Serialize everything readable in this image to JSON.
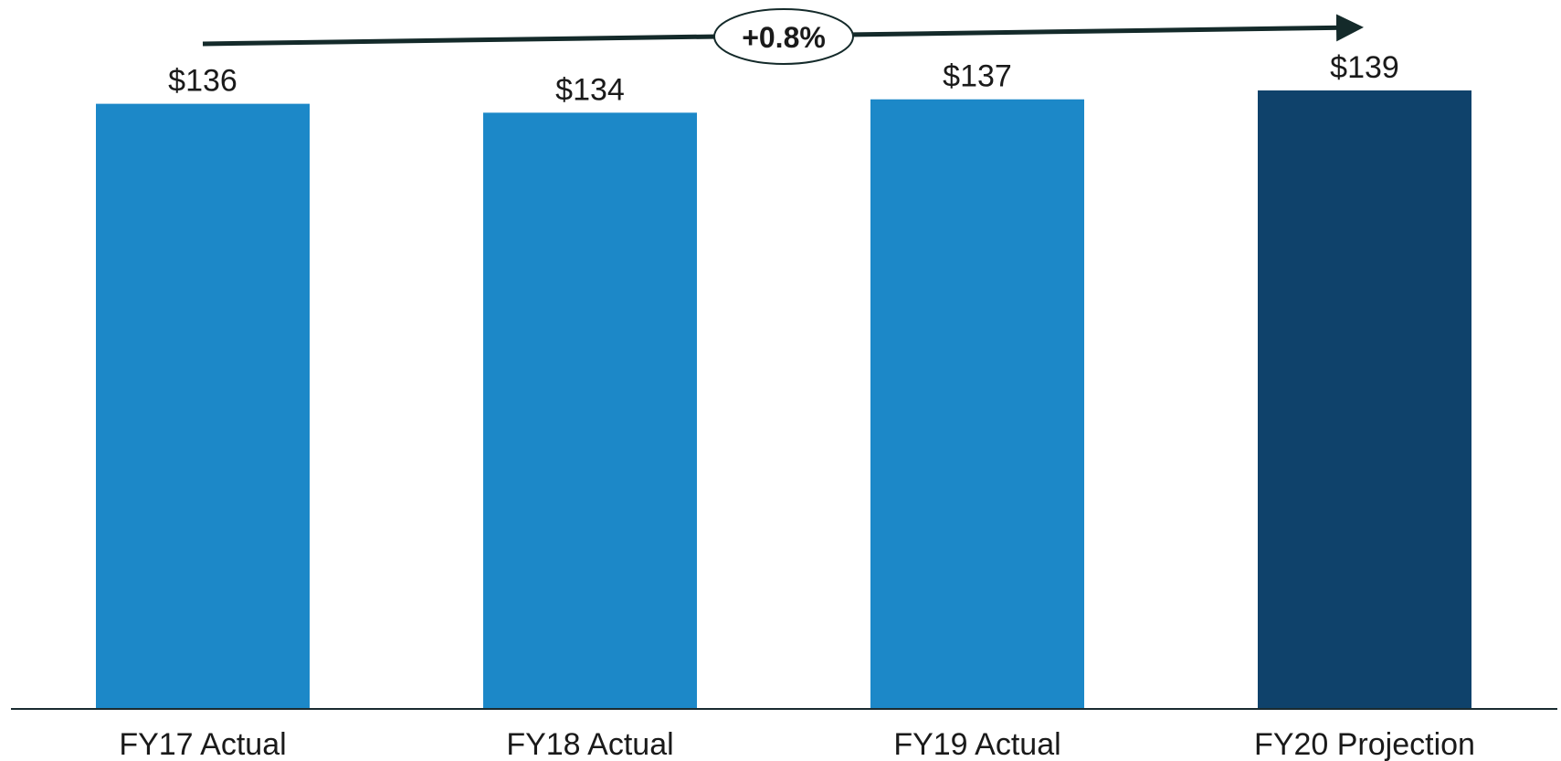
{
  "chart_data": {
    "type": "bar",
    "categories": [
      "FY17 Actual",
      "FY18 Actual",
      "FY19 Actual",
      "FY20 Projection"
    ],
    "values": [
      136,
      134,
      137,
      139
    ],
    "value_labels": [
      "$136",
      "$134",
      "$137",
      "$139"
    ],
    "ylim": [
      0,
      139
    ],
    "title": "",
    "xlabel": "",
    "ylabel": "",
    "grid": false,
    "legend": "none",
    "annotation": {
      "text": "+0.8%",
      "kind": "growth-arrow"
    },
    "colors": {
      "actual": "#1c88c8",
      "projection": "#0f426b",
      "axis": "#1a2b30",
      "arrow": "#142a2a",
      "text": "#1a1a1a"
    }
  }
}
